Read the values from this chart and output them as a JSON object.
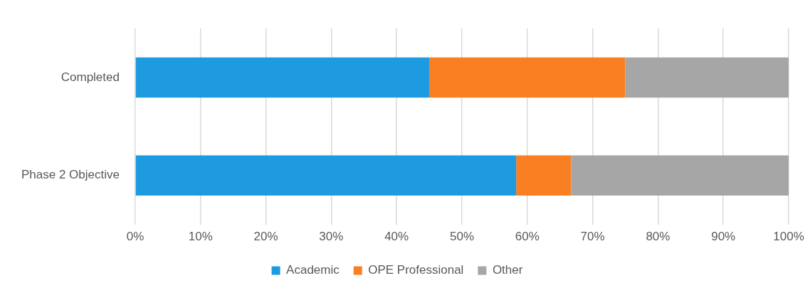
{
  "chart_data": {
    "type": "bar",
    "orientation": "horizontal",
    "stacked": true,
    "categories": [
      "Completed",
      "Phase 2 Objective"
    ],
    "series": [
      {
        "name": "Academic",
        "color": "#1e9ae0",
        "values": [
          45,
          58.3
        ]
      },
      {
        "name": "OPE Professional",
        "color": "#f97f22",
        "values": [
          30,
          8.4
        ]
      },
      {
        "name": "Other",
        "color": "#a6a6a6",
        "values": [
          25,
          33.3
        ]
      }
    ],
    "xlim": [
      0,
      100
    ],
    "xticks": [
      {
        "value": 0,
        "label": "0%"
      },
      {
        "value": 10,
        "label": "10%"
      },
      {
        "value": 20,
        "label": "20%"
      },
      {
        "value": 30,
        "label": "30%"
      },
      {
        "value": 40,
        "label": "40%"
      },
      {
        "value": 50,
        "label": "50%"
      },
      {
        "value": 60,
        "label": "60%"
      },
      {
        "value": 70,
        "label": "70%"
      },
      {
        "value": 80,
        "label": "80%"
      },
      {
        "value": 90,
        "label": "90%"
      },
      {
        "value": 100,
        "label": "100%"
      }
    ],
    "grid": "x",
    "legend": "bottom"
  }
}
